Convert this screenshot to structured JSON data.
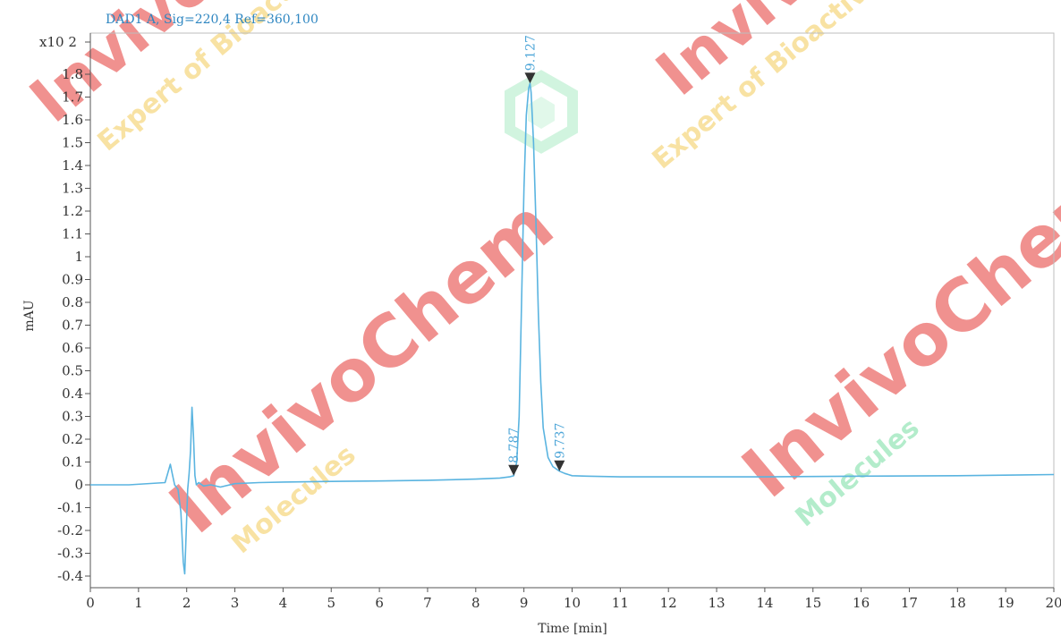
{
  "chart_data": {
    "type": "line",
    "title": "DAD1 A, Sig=220,4 Ref=360,100",
    "xlabel": "Time [min]",
    "ylabel": "mAU",
    "y_multiplier": "x10 2",
    "xlim": [
      0,
      20
    ],
    "ylim": [
      -0.45,
      2.0
    ],
    "x_ticks": [
      "0",
      "1",
      "2",
      "3",
      "4",
      "5",
      "6",
      "7",
      "8",
      "9",
      "10",
      "11",
      "12",
      "13",
      "14",
      "15",
      "16",
      "17",
      "18",
      "19",
      "20"
    ],
    "y_ticks": [
      "-0.4",
      "-0.3",
      "-0.2",
      "-0.1",
      "0",
      "0.1",
      "0.2",
      "0.3",
      "0.4",
      "0.5",
      "0.6",
      "0.7",
      "0.8",
      "0.9",
      "1",
      "1.1",
      "1.2",
      "1.3",
      "1.4",
      "1.5",
      "1.6",
      "1.7",
      "1.8"
    ],
    "line_color": "#5ab4e0",
    "series": [
      {
        "x": [
          0,
          0.8,
          1.55,
          1.62,
          1.66,
          1.7,
          1.75,
          1.82,
          1.88,
          1.93,
          1.96,
          1.99,
          2.02,
          2.05,
          2.08,
          2.11,
          2.14,
          2.17,
          2.2,
          2.25,
          2.35,
          2.5,
          2.7,
          3.0,
          3.5,
          4.0,
          5.0,
          6.0,
          7.0,
          8.0,
          8.5,
          8.7,
          8.787,
          8.85,
          8.9,
          8.95,
          9.0,
          9.05,
          9.1,
          9.127,
          9.15,
          9.2,
          9.25,
          9.3,
          9.35,
          9.4,
          9.5,
          9.6,
          9.737,
          9.85,
          10.0,
          10.3,
          11.0,
          12.0,
          14.0,
          16.0,
          18.0,
          20.0
        ],
        "y": [
          0.0,
          0.0,
          0.01,
          0.06,
          0.09,
          0.05,
          0.0,
          -0.02,
          -0.12,
          -0.34,
          -0.39,
          -0.2,
          -0.02,
          0.05,
          0.15,
          0.34,
          0.22,
          0.04,
          0.0,
          0.01,
          -0.005,
          0.0,
          -0.01,
          0.005,
          0.01,
          0.012,
          0.015,
          0.017,
          0.02,
          0.025,
          0.03,
          0.035,
          0.04,
          0.1,
          0.3,
          0.8,
          1.3,
          1.62,
          1.74,
          1.76,
          1.72,
          1.5,
          1.15,
          0.75,
          0.45,
          0.25,
          0.12,
          0.08,
          0.06,
          0.05,
          0.04,
          0.038,
          0.035,
          0.035,
          0.035,
          0.038,
          0.04,
          0.045
        ]
      }
    ],
    "peaks": [
      {
        "rt": 8.787,
        "label": "8.787",
        "y": 0.04
      },
      {
        "rt": 9.127,
        "label": "9.127",
        "y": 1.76
      },
      {
        "rt": 9.737,
        "label": "9.737",
        "y": 0.06
      }
    ],
    "watermark_color": "#e53935",
    "watermark_accent": "#f3c64a",
    "watermark_green": "#58d68d"
  },
  "watermark": {
    "brand": "InvivoChem",
    "tag1": "Expert of Bioactive",
    "tag2": "Molecules"
  }
}
